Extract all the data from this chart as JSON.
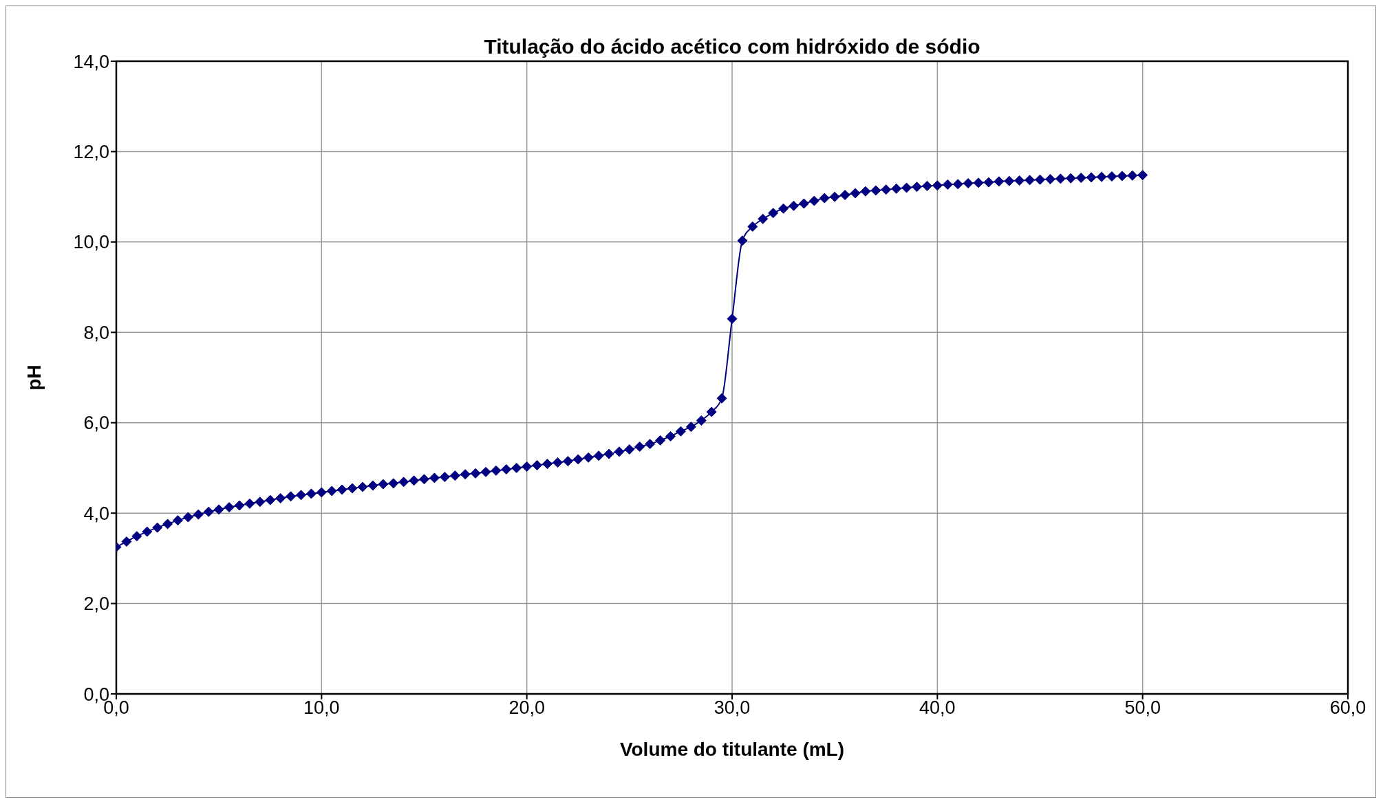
{
  "chart_data": {
    "type": "line",
    "title": "Titulação do ácido acético com hidróxido de sódio",
    "xlabel": "Volume do titulante (mL)",
    "ylabel": "pH",
    "x": [
      0,
      0.5,
      1,
      1.5,
      2,
      2.5,
      3,
      3.5,
      4,
      4.5,
      5,
      5.5,
      6,
      6.5,
      7,
      7.5,
      8,
      8.5,
      9,
      9.5,
      10,
      10.5,
      11,
      11.5,
      12,
      12.5,
      13,
      13.5,
      14,
      14.5,
      15,
      15.5,
      16,
      16.5,
      17,
      17.5,
      18,
      18.5,
      19,
      19.5,
      20,
      20.5,
      21,
      21.5,
      22,
      22.5,
      23,
      23.5,
      24,
      24.5,
      25,
      25.5,
      26,
      26.5,
      27,
      27.5,
      28,
      28.5,
      29,
      29.5,
      30,
      30.5,
      31,
      31.5,
      32,
      32.5,
      33,
      33.5,
      34,
      34.5,
      35,
      35.5,
      36,
      36.5,
      37,
      37.5,
      38,
      38.5,
      39,
      39.5,
      40,
      40.5,
      41,
      41.5,
      42,
      42.5,
      43,
      43.5,
      44,
      44.5,
      45,
      45.5,
      46,
      46.5,
      47,
      47.5,
      48,
      48.5,
      49,
      49.5,
      50
    ],
    "series": [
      {
        "color": "#000080",
        "values": [
          3.25,
          3.37,
          3.49,
          3.59,
          3.68,
          3.76,
          3.84,
          3.91,
          3.97,
          4.03,
          4.08,
          4.13,
          4.17,
          4.21,
          4.25,
          4.29,
          4.33,
          4.37,
          4.4,
          4.43,
          4.46,
          4.49,
          4.52,
          4.55,
          4.58,
          4.61,
          4.64,
          4.66,
          4.69,
          4.72,
          4.75,
          4.78,
          4.8,
          4.83,
          4.86,
          4.88,
          4.91,
          4.94,
          4.97,
          5.0,
          5.03,
          5.06,
          5.09,
          5.12,
          5.15,
          5.19,
          5.23,
          5.27,
          5.31,
          5.36,
          5.41,
          5.47,
          5.53,
          5.61,
          5.7,
          5.81,
          5.91,
          6.05,
          6.24,
          6.54,
          8.3,
          10.03,
          10.34,
          10.51,
          10.64,
          10.74,
          10.8,
          10.85,
          10.91,
          10.97,
          11.0,
          11.04,
          11.08,
          11.12,
          11.14,
          11.16,
          11.18,
          11.2,
          11.22,
          11.24,
          11.25,
          11.27,
          11.28,
          11.3,
          11.31,
          11.32,
          11.34,
          11.35,
          11.36,
          11.37,
          11.38,
          11.39,
          11.4,
          11.41,
          11.42,
          11.43,
          11.44,
          11.45,
          11.46,
          11.47,
          11.48
        ]
      }
    ],
    "xlim": [
      0,
      60
    ],
    "xticks": [
      {
        "value": 0,
        "label": "0,0"
      },
      {
        "value": 10,
        "label": "10,0"
      },
      {
        "value": 20,
        "label": "20,0"
      },
      {
        "value": 30,
        "label": "30,0"
      },
      {
        "value": 40,
        "label": "40,0"
      },
      {
        "value": 50,
        "label": "50,0"
      },
      {
        "value": 60,
        "label": "60,0"
      }
    ],
    "ylim": [
      0,
      14
    ],
    "yticks": [
      {
        "value": 0,
        "label": "0,0"
      },
      {
        "value": 2,
        "label": "2,0"
      },
      {
        "value": 4,
        "label": "4,0"
      },
      {
        "value": 6,
        "label": "6,0"
      },
      {
        "value": 8,
        "label": "8,0"
      },
      {
        "value": 10,
        "label": "10,0"
      },
      {
        "value": 12,
        "label": "12,0"
      },
      {
        "value": 14,
        "label": "14,0"
      }
    ],
    "grid": true,
    "legend": false,
    "marker": "diamond",
    "line_style": "solid"
  }
}
